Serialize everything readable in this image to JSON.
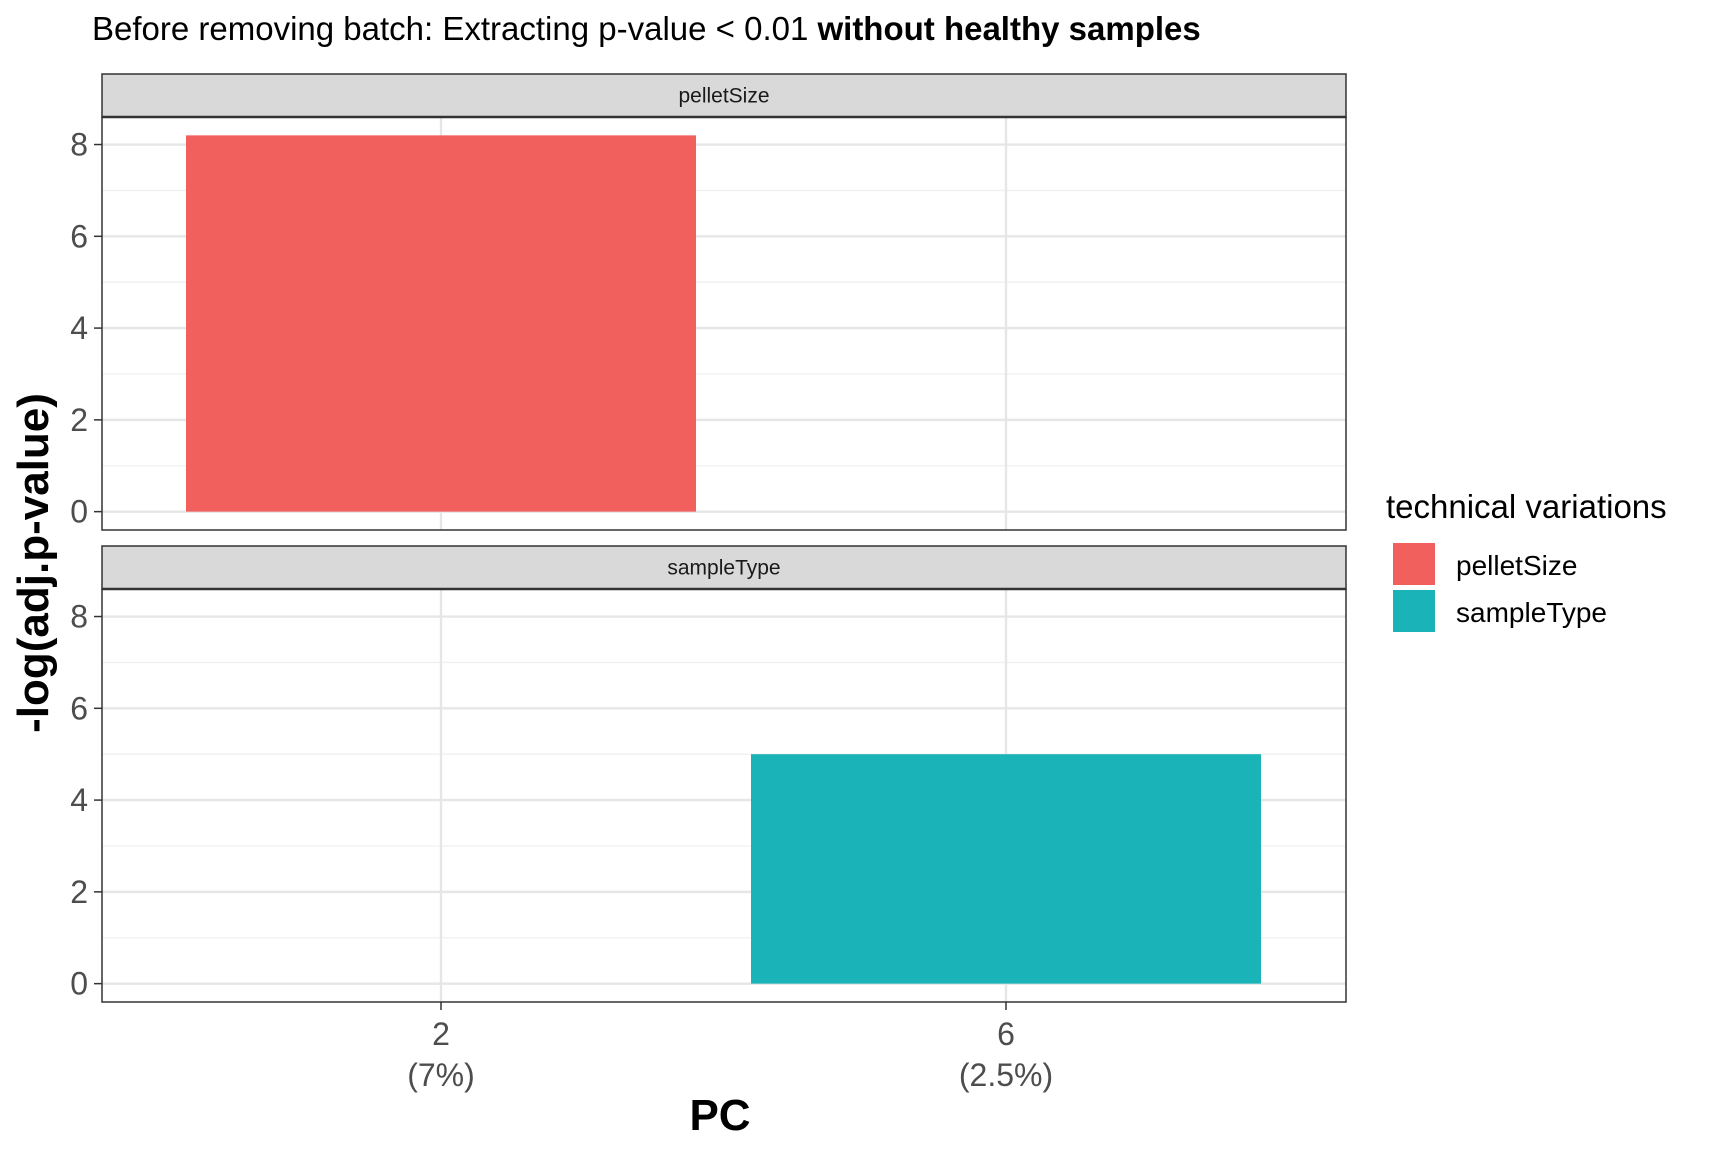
{
  "chart_data": {
    "type": "bar",
    "title": {
      "prefix": "Before removing batch: Extracting p-value < 0.01 ",
      "emphasis": "without healthy samples"
    },
    "xlabel": "PC",
    "ylabel": "-log(adj.p-value)",
    "categories": [
      {
        "value": "2",
        "pct": "(7%)"
      },
      {
        "value": "6",
        "pct": "(2.5%)"
      }
    ],
    "ylim": [
      -0.4,
      8.6
    ],
    "y_ticks": [
      0,
      2,
      4,
      6,
      8
    ],
    "grid": true,
    "legend": {
      "title": "technical variations",
      "placement": "right"
    },
    "series": [
      {
        "name": "pelletSize",
        "color": "#F2605E",
        "values": [
          8.2,
          null
        ]
      },
      {
        "name": "sampleType",
        "color": "#1AB3B8",
        "values": [
          null,
          5.0
        ]
      }
    ],
    "facets": [
      "pelletSize",
      "sampleType"
    ]
  }
}
